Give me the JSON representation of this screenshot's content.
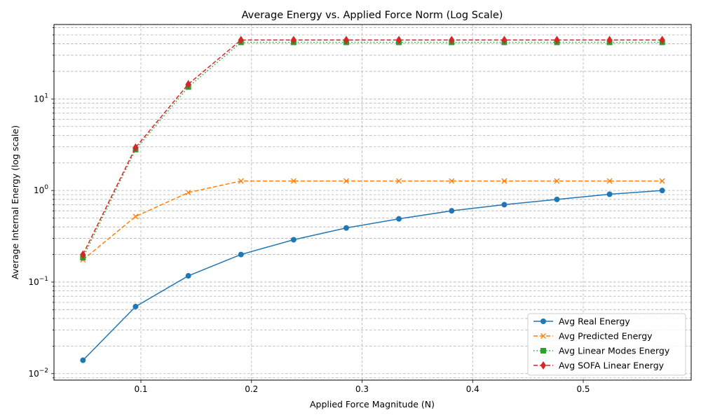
{
  "chart_data": {
    "type": "line",
    "title": "Average Energy vs. Applied Force Norm (Log Scale)",
    "xlabel": "Applied Force Magnitude (N)",
    "ylabel": "Average Internal Energy (log scale)",
    "x": [
      0.0476,
      0.0952,
      0.1429,
      0.1905,
      0.2381,
      0.2857,
      0.3333,
      0.381,
      0.4286,
      0.4762,
      0.5238,
      0.5714
    ],
    "xlim": [
      0.0214,
      0.5976
    ],
    "ylim": [
      0.0085,
      65
    ],
    "yscale": "log",
    "x_ticks": [
      0.1,
      0.2,
      0.3,
      0.4,
      0.5
    ],
    "x_tick_labels": [
      "0.1",
      "0.2",
      "0.3",
      "0.4",
      "0.5"
    ],
    "y_major_ticks": [
      0.01,
      0.1,
      1,
      10
    ],
    "y_tick_labels": [
      "10$^{-2}$",
      "10$^{-1}$",
      "10$^{0}$",
      "10$^{1}$"
    ],
    "grid": true,
    "legend_position": "lower-right",
    "series": [
      {
        "name": "Avg Real Energy",
        "color": "#1f77b4",
        "marker": "circle",
        "linestyle": "solid",
        "values": [
          0.014,
          0.054,
          0.117,
          0.2,
          0.29,
          0.39,
          0.49,
          0.6,
          0.7,
          0.8,
          0.91,
          1.0
        ]
      },
      {
        "name": "Avg Predicted Energy",
        "color": "#ff7f0e",
        "marker": "x",
        "linestyle": "dashed",
        "values": [
          0.175,
          0.52,
          0.95,
          1.27,
          1.27,
          1.27,
          1.27,
          1.27,
          1.27,
          1.27,
          1.27,
          1.27
        ]
      },
      {
        "name": "Avg Linear Modes Energy",
        "color": "#2ca02c",
        "marker": "square",
        "linestyle": "dotted",
        "values": [
          0.185,
          2.8,
          13.5,
          41.5,
          41.5,
          41.5,
          41.5,
          41.5,
          41.5,
          41.5,
          41.5,
          41.5
        ]
      },
      {
        "name": "Avg SOFA Linear Energy",
        "color": "#d62728",
        "marker": "diamond",
        "linestyle": "dashed",
        "values": [
          0.2,
          2.95,
          14.5,
          44.0,
          44.0,
          44.0,
          44.0,
          44.0,
          44.0,
          44.0,
          44.0,
          44.0
        ]
      }
    ]
  }
}
